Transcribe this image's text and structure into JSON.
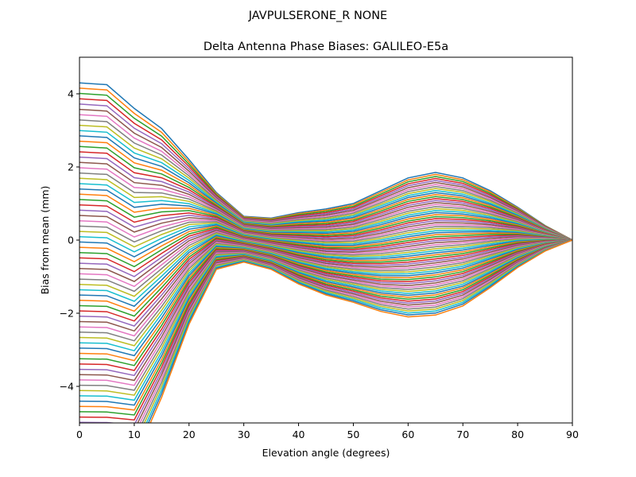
{
  "chart_data": {
    "type": "line",
    "suptitle": "JAVPULSERONE_R  NONE",
    "title": "Delta Antenna Phase Biases: GALILEO-E5a",
    "xlabel": "Elevation angle (degrees)",
    "ylabel": "Bias from mean (mm)",
    "xlim": [
      0,
      90
    ],
    "ylim": [
      -5,
      5
    ],
    "xticks": [
      0,
      10,
      20,
      30,
      40,
      50,
      60,
      70,
      80,
      90
    ],
    "yticks": [
      -4,
      -2,
      0,
      2,
      4
    ],
    "ytick_labels": [
      "−4",
      "−2",
      "0",
      "2",
      "4"
    ],
    "grid": false,
    "legend": "none",
    "x": [
      0,
      5,
      10,
      15,
      20,
      25,
      30,
      35,
      40,
      45,
      50,
      55,
      60,
      65,
      70,
      75,
      80,
      85,
      90
    ],
    "series_count": 72,
    "palette": [
      "#1f77b4",
      "#ff7f0e",
      "#2ca02c",
      "#d62728",
      "#9467bd",
      "#8c564b",
      "#e377c2",
      "#7f7f7f",
      "#bcbd22",
      "#17becf"
    ],
    "family_envelope": {
      "low_elevation_y": [
        [
          -6,
          4.3
        ],
        [
          -6,
          4.25
        ],
        [
          -6,
          3.6
        ],
        [
          -4.3,
          3.05
        ],
        [
          -2.3,
          2.2
        ],
        [
          -0.8,
          1.3
        ],
        [
          -0.6,
          0.65
        ],
        [
          -0.8,
          0.6
        ],
        [
          -1.2,
          0.75
        ],
        [
          -1.5,
          0.85
        ],
        [
          -1.7,
          1.0
        ],
        [
          -1.95,
          1.35
        ],
        [
          -2.1,
          1.7
        ],
        [
          -2.05,
          1.85
        ],
        [
          -1.8,
          1.7
        ],
        [
          -1.3,
          1.35
        ],
        [
          -0.75,
          0.9
        ],
        [
          -0.3,
          0.4
        ],
        [
          0,
          0
        ]
      ]
    }
  }
}
